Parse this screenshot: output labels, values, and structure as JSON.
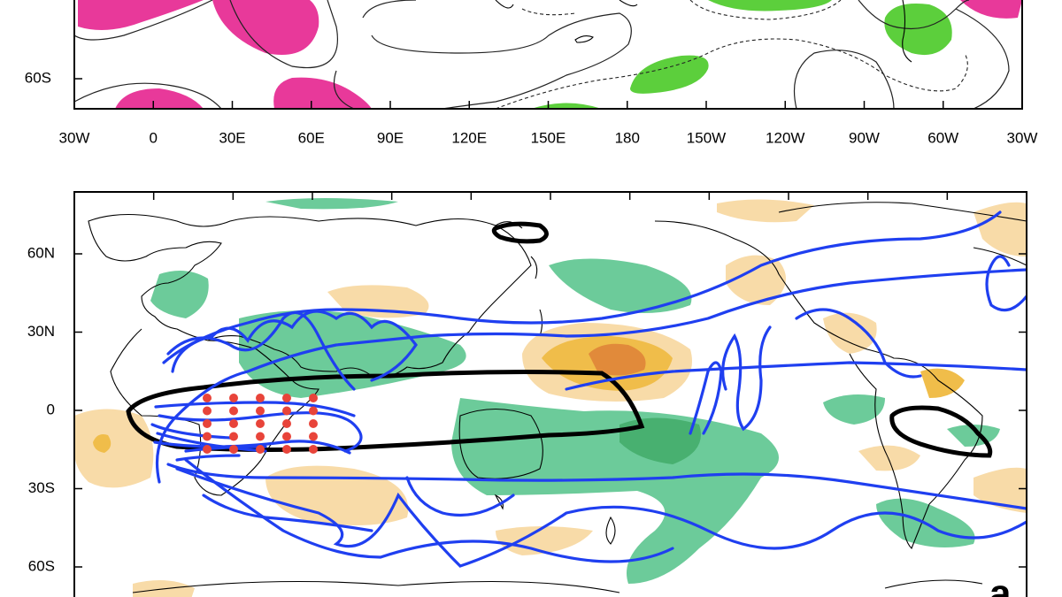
{
  "top_panel": {
    "y_labels": [
      "60S"
    ],
    "x_labels": [
      "30W",
      "0",
      "30E",
      "60E",
      "90E",
      "120E",
      "150E",
      "180",
      "150W",
      "120W",
      "90W",
      "60W",
      "30W"
    ]
  },
  "bottom_panel": {
    "y_labels": [
      "60N",
      "30N",
      "0",
      "30S",
      "60S"
    ],
    "panel_label": "a"
  }
}
